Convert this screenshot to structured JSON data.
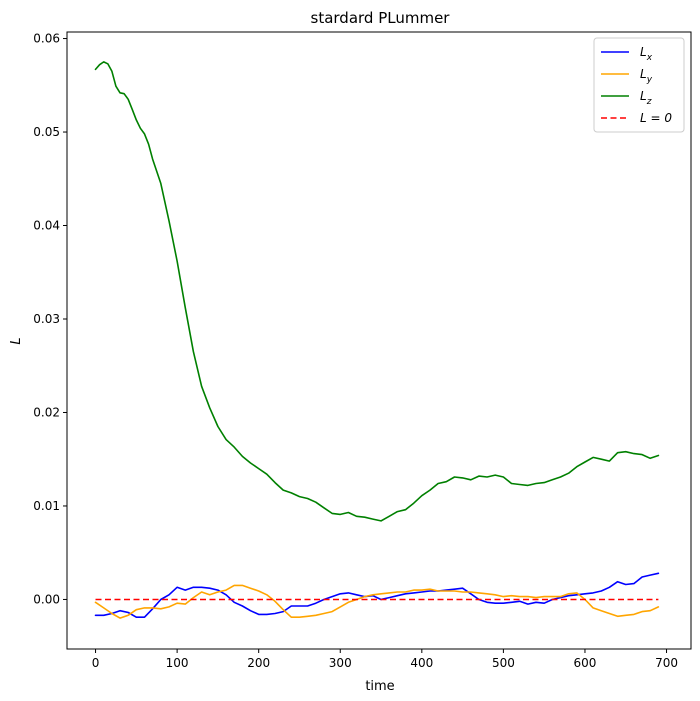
{
  "chart_data": {
    "type": "line",
    "title": "stardard PLummer",
    "xlabel": "time",
    "ylabel": "L",
    "xlim": [
      -35,
      730
    ],
    "ylim": [
      -0.0053,
      0.0607
    ],
    "xticks": [
      0,
      100,
      200,
      300,
      400,
      500,
      600,
      700
    ],
    "xtick_labels": [
      "0",
      "100",
      "200",
      "300",
      "400",
      "500",
      "600",
      "700"
    ],
    "yticks": [
      0.0,
      0.01,
      0.02,
      0.03,
      0.04,
      0.05,
      0.06
    ],
    "ytick_labels": [
      "0.00",
      "0.01",
      "0.02",
      "0.03",
      "0.04",
      "0.05",
      "0.06"
    ],
    "grid": false,
    "legend_position": "top-right",
    "series": [
      {
        "name": "L_x",
        "label_main": "L",
        "label_sub": "x",
        "color": "#0000ff",
        "dash": "solid",
        "x": [
          0,
          10,
          20,
          30,
          40,
          50,
          60,
          70,
          80,
          90,
          100,
          110,
          120,
          130,
          140,
          150,
          160,
          170,
          180,
          190,
          200,
          210,
          220,
          230,
          240,
          250,
          260,
          270,
          280,
          290,
          300,
          310,
          320,
          330,
          340,
          350,
          360,
          370,
          380,
          390,
          400,
          410,
          420,
          430,
          440,
          450,
          460,
          470,
          480,
          490,
          500,
          510,
          520,
          530,
          540,
          550,
          560,
          570,
          580,
          590,
          600,
          610,
          620,
          630,
          640,
          650,
          660,
          670,
          680,
          690
        ],
        "y": [
          -0.0017,
          -0.0017,
          -0.0015,
          -0.0012,
          -0.0014,
          -0.0019,
          -0.0019,
          -0.001,
          0.0,
          0.0005,
          0.0013,
          0.001,
          0.0013,
          0.0013,
          0.0012,
          0.001,
          0.0005,
          -0.0003,
          -0.0007,
          -0.0012,
          -0.0016,
          -0.0016,
          -0.0015,
          -0.0013,
          -0.0007,
          -0.0007,
          -0.0007,
          -0.0004,
          0.0,
          0.0003,
          0.0006,
          0.0007,
          0.0005,
          0.0003,
          0.0004,
          0.0,
          0.0002,
          0.0004,
          0.0006,
          0.0007,
          0.0008,
          0.0009,
          0.0009,
          0.001,
          0.0011,
          0.0012,
          0.0006,
          0.0,
          -0.0003,
          -0.0004,
          -0.0004,
          -0.0003,
          -0.0002,
          -0.0005,
          -0.0003,
          -0.0004,
          0.0,
          0.0002,
          0.0004,
          0.0005,
          0.0006,
          0.0007,
          0.0009,
          0.0013,
          0.0019,
          0.0016,
          0.0017,
          0.0024,
          0.0026,
          0.0028
        ]
      },
      {
        "name": "L_y",
        "label_main": "L",
        "label_sub": "y",
        "color": "#ffa500",
        "dash": "solid",
        "x": [
          0,
          10,
          20,
          30,
          40,
          50,
          60,
          70,
          80,
          90,
          100,
          110,
          120,
          130,
          140,
          150,
          160,
          170,
          180,
          190,
          200,
          210,
          220,
          230,
          240,
          250,
          260,
          270,
          280,
          290,
          300,
          310,
          320,
          330,
          340,
          350,
          360,
          370,
          380,
          390,
          400,
          410,
          420,
          430,
          440,
          450,
          460,
          470,
          480,
          490,
          500,
          510,
          520,
          530,
          540,
          550,
          560,
          570,
          580,
          590,
          600,
          610,
          620,
          630,
          640,
          650,
          660,
          670,
          680,
          690
        ],
        "y": [
          -0.0003,
          -0.0009,
          -0.0015,
          -0.002,
          -0.0017,
          -0.0011,
          -0.0009,
          -0.0009,
          -0.001,
          -0.0008,
          -0.0004,
          -0.0005,
          0.0002,
          0.0008,
          0.0005,
          0.0008,
          0.001,
          0.0015,
          0.0015,
          0.0012,
          0.0009,
          0.0005,
          -0.0002,
          -0.0011,
          -0.0019,
          -0.0019,
          -0.0018,
          -0.0017,
          -0.0015,
          -0.0013,
          -0.0008,
          -0.0003,
          0.0,
          0.0003,
          0.0005,
          0.0006,
          0.0007,
          0.0008,
          0.0008,
          0.001,
          0.001,
          0.0011,
          0.0009,
          0.0009,
          0.0009,
          0.0008,
          0.0008,
          0.0007,
          0.0006,
          0.0005,
          0.0003,
          0.0004,
          0.0003,
          0.0003,
          0.0002,
          0.0003,
          0.0003,
          0.0003,
          0.0006,
          0.0007,
          0.0,
          -0.0009,
          -0.0012,
          -0.0015,
          -0.0018,
          -0.0017,
          -0.0016,
          -0.0013,
          -0.0012,
          -0.0008
        ]
      },
      {
        "name": "L_z",
        "label_main": "L",
        "label_sub": "z",
        "color": "#008000",
        "dash": "solid",
        "x": [
          0,
          5,
          10,
          15,
          20,
          25,
          30,
          35,
          40,
          45,
          50,
          55,
          60,
          65,
          70,
          80,
          90,
          100,
          110,
          120,
          130,
          140,
          150,
          160,
          170,
          180,
          190,
          200,
          210,
          220,
          230,
          240,
          250,
          260,
          270,
          280,
          290,
          300,
          310,
          320,
          330,
          340,
          350,
          360,
          370,
          380,
          390,
          400,
          410,
          420,
          430,
          440,
          450,
          460,
          470,
          480,
          490,
          500,
          510,
          520,
          530,
          540,
          550,
          560,
          570,
          580,
          590,
          600,
          610,
          620,
          630,
          640,
          650,
          660,
          670,
          680,
          690
        ],
        "y": [
          0.0567,
          0.0572,
          0.0575,
          0.0573,
          0.0565,
          0.0549,
          0.0542,
          0.0541,
          0.0535,
          0.0524,
          0.0513,
          0.0504,
          0.0498,
          0.0487,
          0.0471,
          0.0445,
          0.0405,
          0.0362,
          0.0312,
          0.0265,
          0.0228,
          0.0205,
          0.0185,
          0.0171,
          0.0163,
          0.0153,
          0.0146,
          0.014,
          0.0134,
          0.0125,
          0.0117,
          0.0114,
          0.011,
          0.0108,
          0.0104,
          0.0098,
          0.0092,
          0.0091,
          0.0093,
          0.0089,
          0.0088,
          0.0086,
          0.0084,
          0.0089,
          0.0094,
          0.0096,
          0.0103,
          0.0111,
          0.0117,
          0.0124,
          0.0126,
          0.0131,
          0.013,
          0.0128,
          0.0132,
          0.0131,
          0.0133,
          0.0131,
          0.0124,
          0.0123,
          0.0122,
          0.0124,
          0.0125,
          0.0128,
          0.0131,
          0.0135,
          0.0142,
          0.0147,
          0.0152,
          0.015,
          0.0148,
          0.0157,
          0.0158,
          0.0156,
          0.0155,
          0.0151,
          0.0154
        ]
      },
      {
        "name": "L = 0",
        "label_main": "L = 0",
        "label_sub": "",
        "color": "#ff0000",
        "dash": "dashed",
        "x": [
          0,
          690
        ],
        "y": [
          0.0,
          0.0
        ]
      }
    ]
  }
}
